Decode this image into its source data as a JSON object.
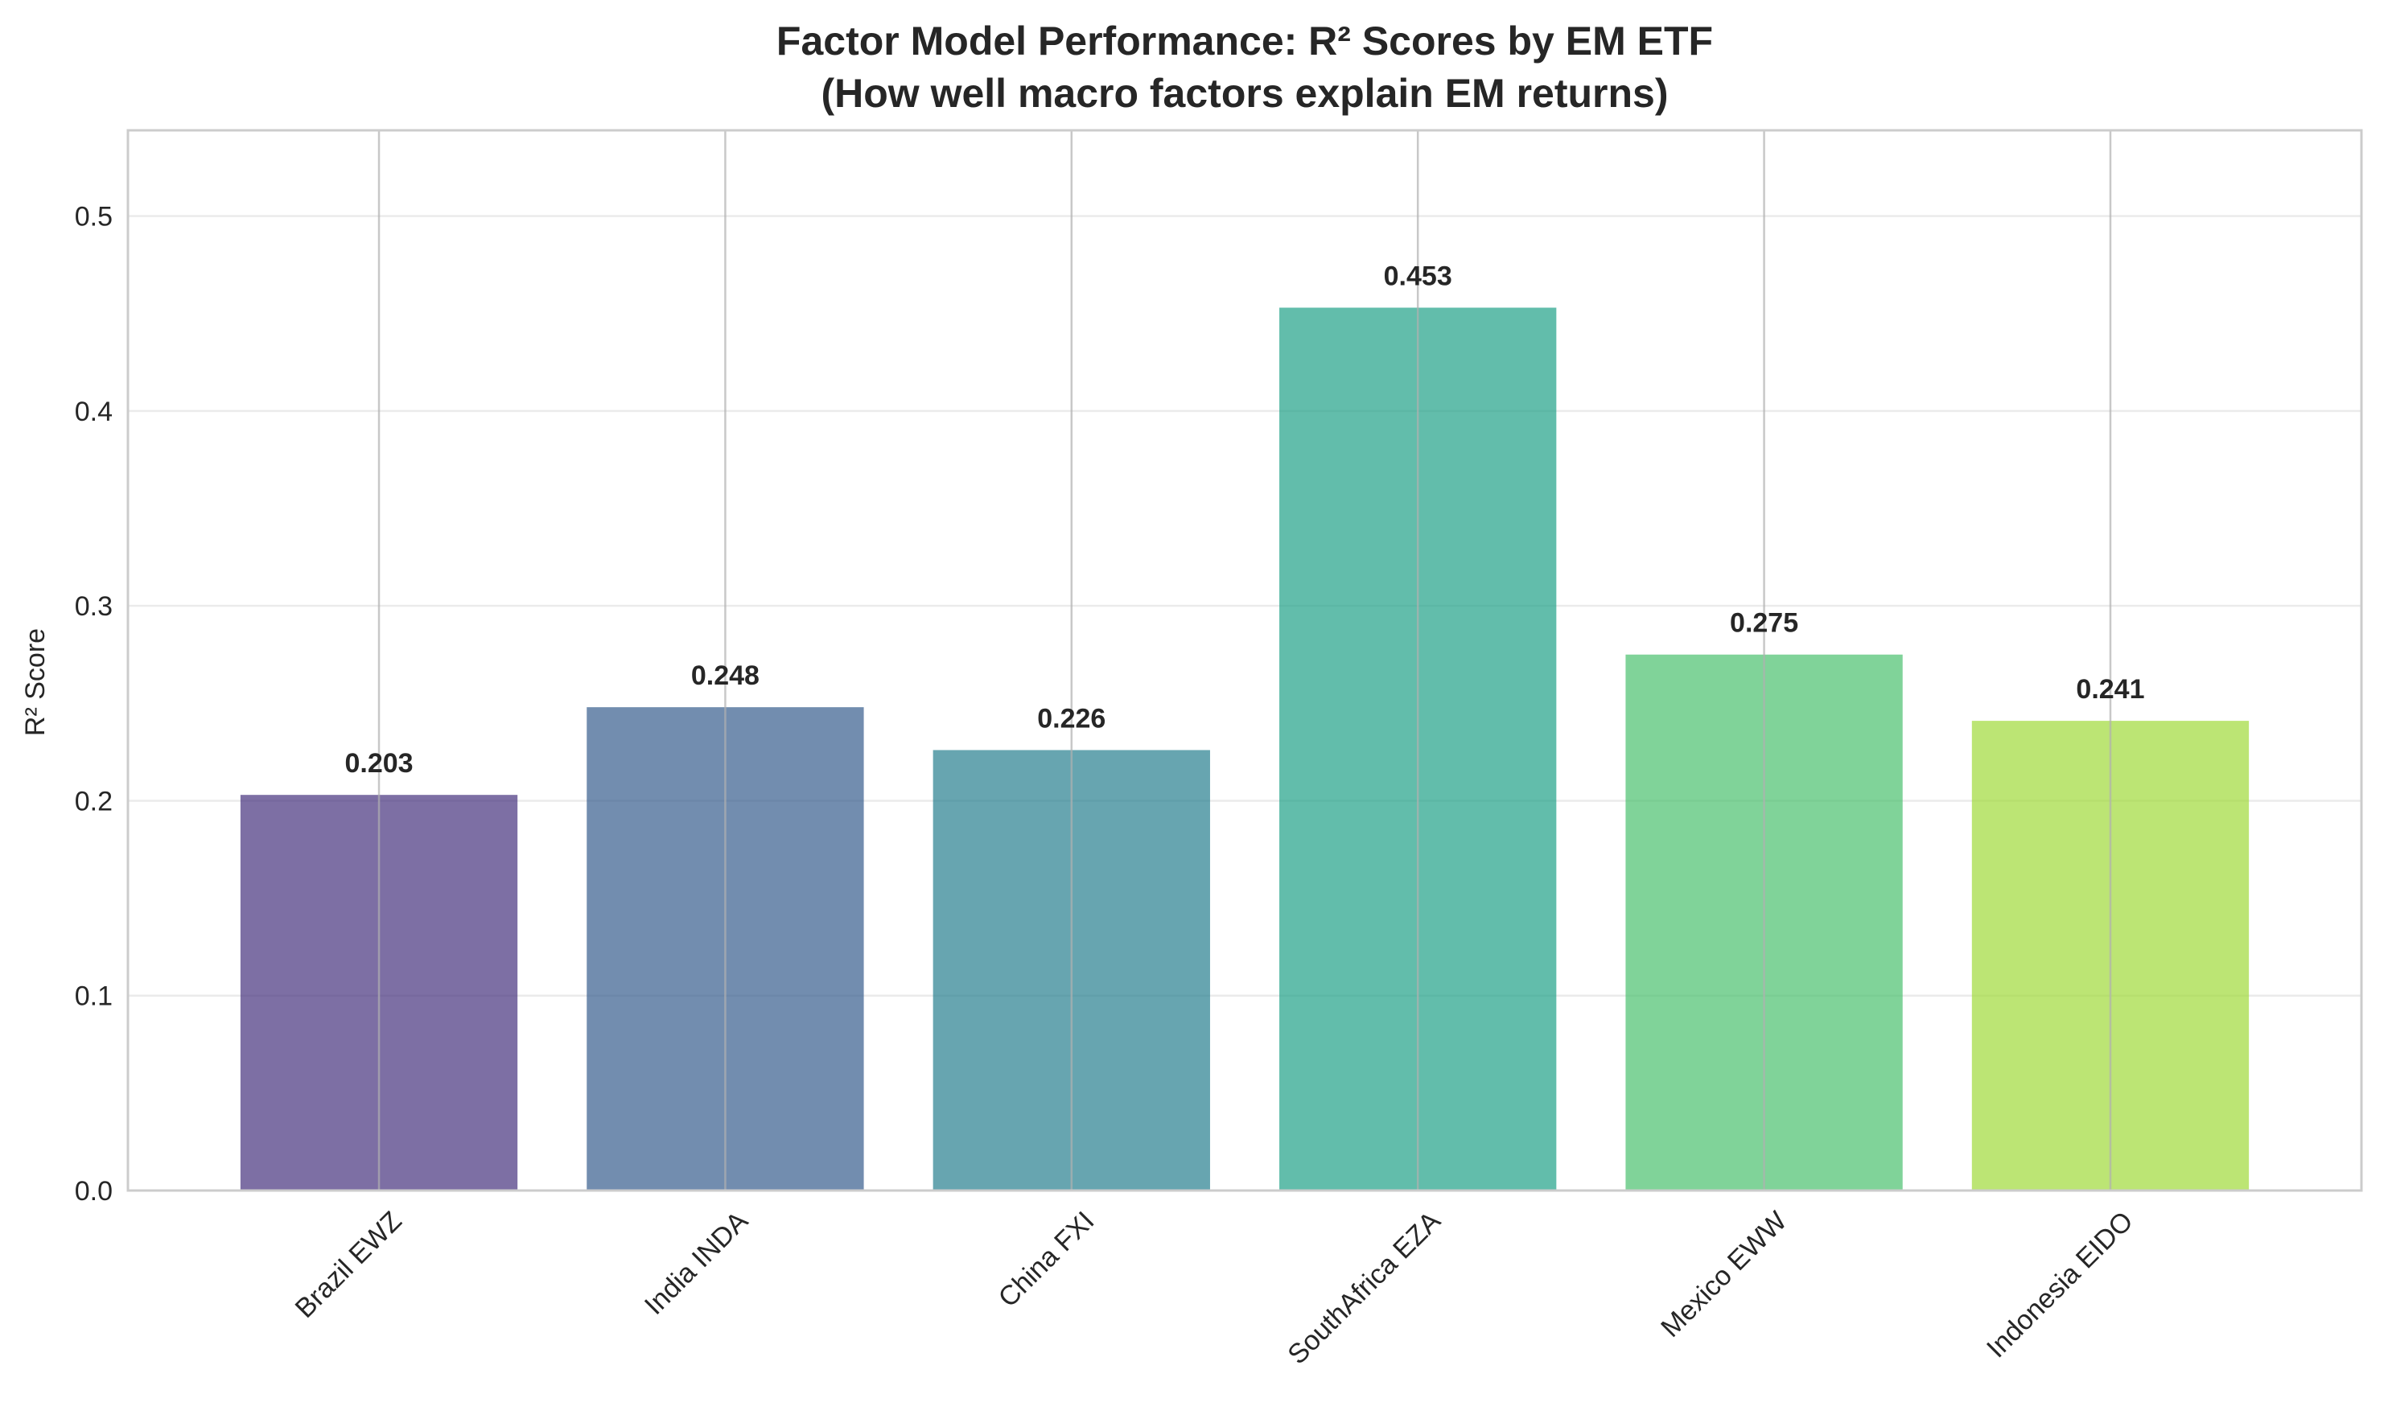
{
  "chart_data": {
    "type": "bar",
    "title": "Factor Model Performance: R² Scores by EM ETF",
    "subtitle": "(How well macro factors explain EM returns)",
    "xlabel": "",
    "ylabel": "R² Score",
    "categories": [
      "Brazil EWZ",
      "India INDA",
      "China FXI",
      "SouthAfrica EZA",
      "Mexico EWW",
      "Indonesia EIDO"
    ],
    "values": [
      0.203,
      0.248,
      0.226,
      0.453,
      0.275,
      0.241
    ],
    "value_labels": [
      "0.203",
      "0.248",
      "0.226",
      "0.453",
      "0.275",
      "0.241"
    ],
    "colors": [
      "#46327e",
      "#365c8d",
      "#277f8e",
      "#1fa187",
      "#4ac16d",
      "#a0da39"
    ],
    "ylim": [
      0,
      0.544
    ],
    "yticks": [
      0.0,
      0.1,
      0.2,
      0.3,
      0.4,
      0.5
    ],
    "ytick_labels": [
      "0.0",
      "0.1",
      "0.2",
      "0.3",
      "0.4",
      "0.5"
    ],
    "grid": true,
    "legend": "none"
  }
}
